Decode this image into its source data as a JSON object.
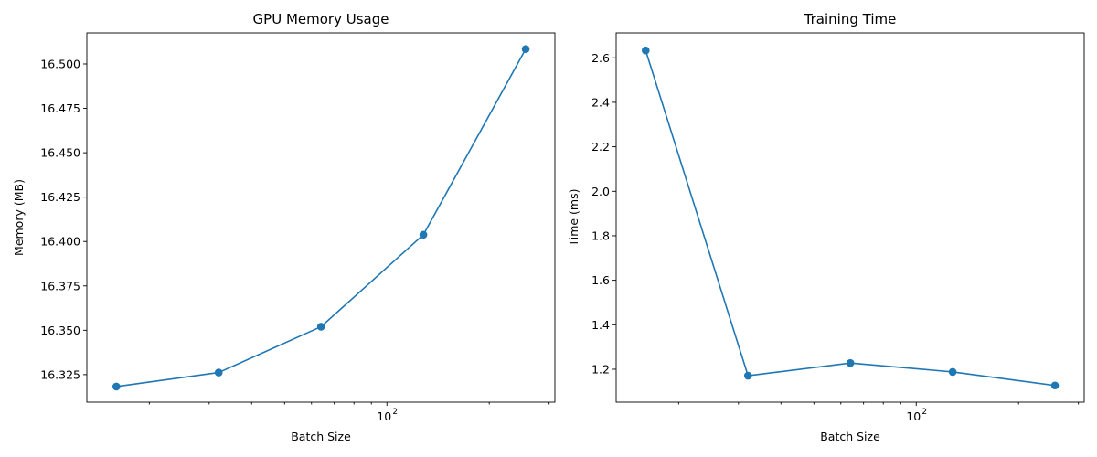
{
  "chart_data": [
    {
      "type": "line",
      "title": "GPU Memory Usage",
      "xlabel": "Batch Size",
      "ylabel": "Memory (MB)",
      "xscale": "log",
      "grid": false,
      "x": [
        16,
        32,
        64,
        128,
        256
      ],
      "series": [
        {
          "values": [
            16.3183,
            16.3262,
            16.352,
            16.4038,
            16.5084
          ],
          "color": "#1f77b4",
          "marker": "circle"
        }
      ],
      "xlim": [
        13.1,
        312.0
      ],
      "ylim": [
        16.3095,
        16.5175
      ],
      "xticks": [
        {
          "value": 100,
          "label": "10",
          "exponent": "2"
        }
      ],
      "xminor": [
        20,
        30,
        40,
        50,
        60,
        70,
        80,
        90,
        200,
        300
      ],
      "yticks": [
        {
          "value": 16.325,
          "label": "16.325"
        },
        {
          "value": 16.35,
          "label": "16.350"
        },
        {
          "value": 16.375,
          "label": "16.375"
        },
        {
          "value": 16.4,
          "label": "16.400"
        },
        {
          "value": 16.425,
          "label": "16.425"
        },
        {
          "value": 16.45,
          "label": "16.450"
        },
        {
          "value": 16.475,
          "label": "16.475"
        },
        {
          "value": 16.5,
          "label": "16.500"
        }
      ]
    },
    {
      "type": "line",
      "title": "Training Time",
      "xlabel": "Batch Size",
      "ylabel": "Time (ms)",
      "xscale": "log",
      "grid": false,
      "x": [
        16,
        32,
        64,
        128,
        256
      ],
      "series": [
        {
          "values": [
            2.633,
            1.171,
            1.228,
            1.188,
            1.127
          ],
          "color": "#1f77b4",
          "marker": "circle"
        }
      ],
      "xlim": [
        13.1,
        312.0
      ],
      "ylim": [
        1.052,
        2.712
      ],
      "xticks": [
        {
          "value": 100,
          "label": "10",
          "exponent": "2"
        }
      ],
      "xminor": [
        20,
        30,
        40,
        50,
        60,
        70,
        80,
        90,
        200,
        300
      ],
      "yticks": [
        {
          "value": 1.2,
          "label": "1.2"
        },
        {
          "value": 1.4,
          "label": "1.4"
        },
        {
          "value": 1.6,
          "label": "1.6"
        },
        {
          "value": 1.8,
          "label": "1.8"
        },
        {
          "value": 2.0,
          "label": "2.0"
        },
        {
          "value": 2.2,
          "label": "2.2"
        },
        {
          "value": 2.4,
          "label": "2.4"
        },
        {
          "value": 2.6,
          "label": "2.6"
        }
      ]
    }
  ]
}
